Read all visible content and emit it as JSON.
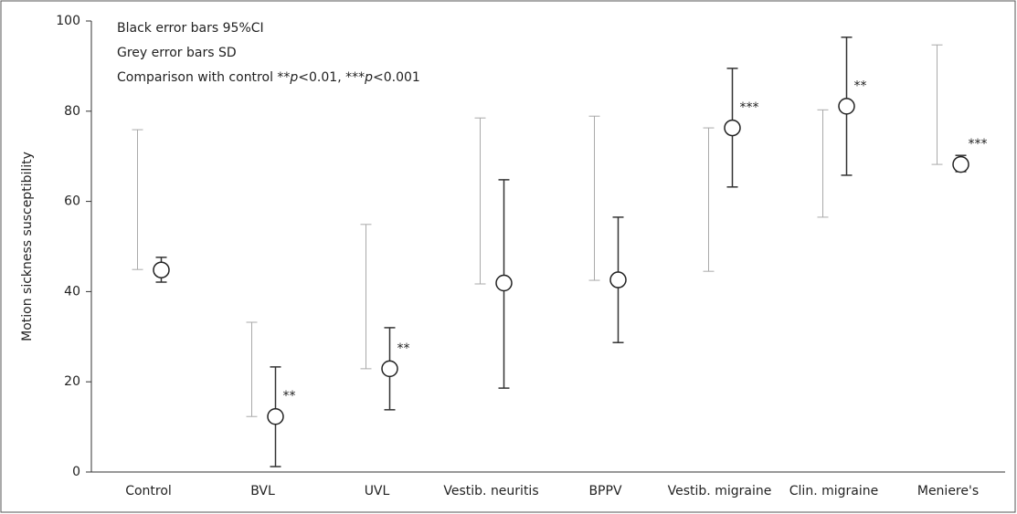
{
  "chart_data": {
    "type": "errorbar",
    "y_label": "Motion sickness susceptibility",
    "legend_lines": [
      "Black error bars 95%CI",
      "Grey error bars SD"
    ],
    "legend_comparison": [
      "Comparison with control **",
      "p",
      "<0.01, ***",
      "p",
      "<0.001"
    ],
    "categories": [
      "Control",
      "BVL",
      "UVL",
      "Vestib. neuritis",
      "BPPV",
      "Vestib. migraine",
      "Clin. migraine",
      "Meniere's"
    ],
    "mean": [
      44.8,
      12.3,
      22.9,
      41.9,
      42.6,
      76.3,
      81.1,
      68.2
    ],
    "ci_low": [
      42.1,
      1.2,
      13.8,
      18.6,
      28.7,
      63.2,
      65.8,
      66.6
    ],
    "ci_high": [
      47.6,
      23.3,
      32.0,
      64.8,
      56.5,
      89.5,
      96.4,
      70.2
    ],
    "sd_low": [
      44.9,
      12.3,
      22.9,
      41.7,
      42.5,
      44.5,
      56.5,
      68.2
    ],
    "sd_high": [
      75.9,
      33.2,
      54.9,
      78.5,
      78.9,
      76.3,
      80.3,
      94.7
    ],
    "significance": [
      null,
      "**",
      "**",
      null,
      null,
      "***",
      "**",
      "***"
    ],
    "ci_color": "#333333",
    "sd_color": "#aaaaaa",
    "ylim": [
      0,
      100
    ],
    "yticks": [
      0,
      20,
      40,
      60,
      80,
      100
    ]
  }
}
